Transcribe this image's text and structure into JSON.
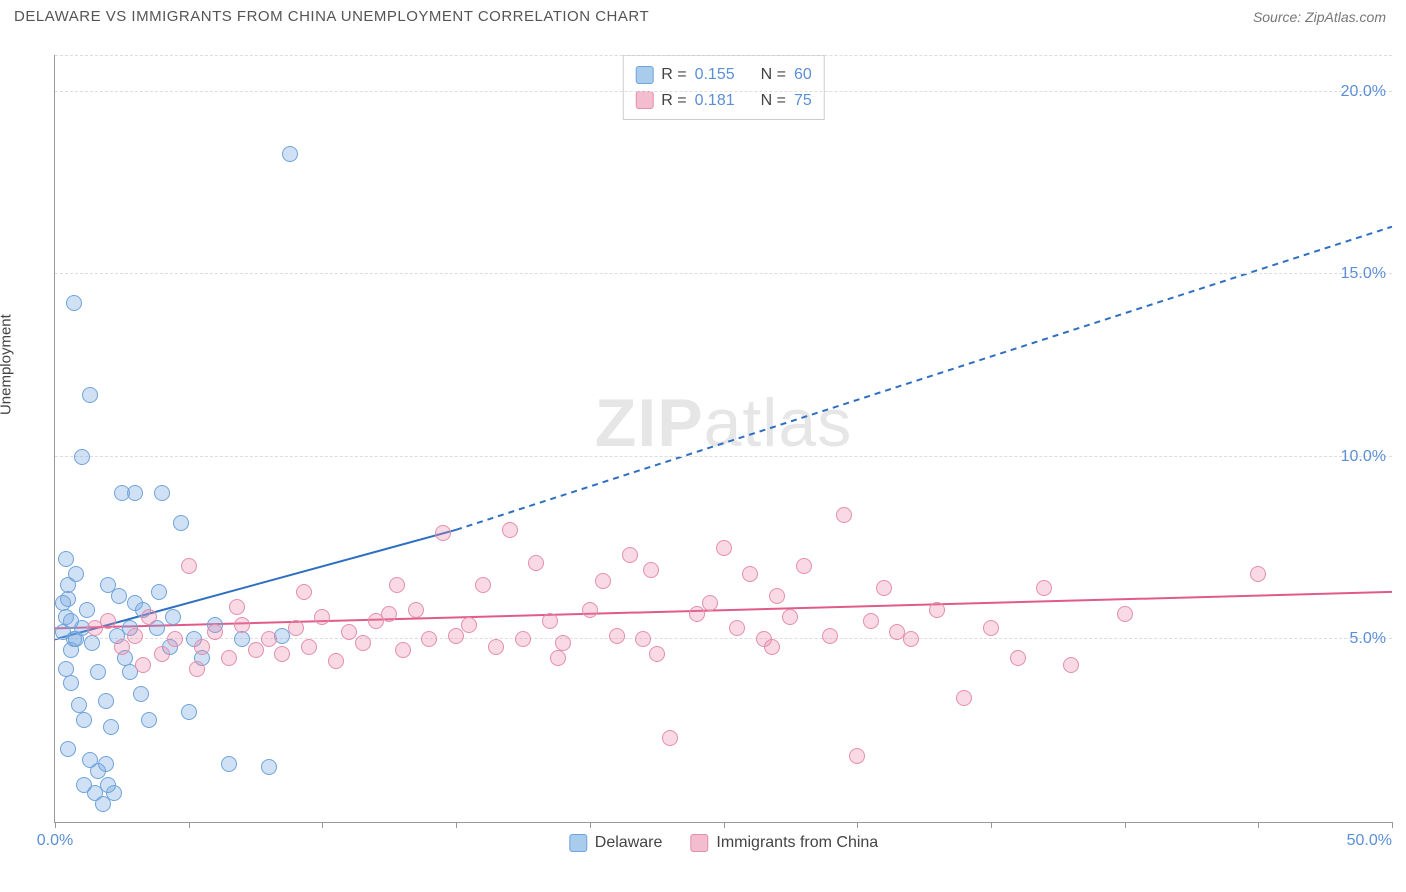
{
  "title": "DELAWARE VS IMMIGRANTS FROM CHINA UNEMPLOYMENT CORRELATION CHART",
  "source": "Source: ZipAtlas.com",
  "ylabel": "Unemployment",
  "watermark_bold": "ZIP",
  "watermark_rest": "atlas",
  "chart": {
    "type": "scatter",
    "xlim": [
      0,
      50
    ],
    "ylim": [
      0,
      21
    ],
    "x_ticks": [
      0,
      5,
      10,
      15,
      20,
      25,
      30,
      35,
      40,
      45,
      50
    ],
    "x_tick_labels": {
      "0": "0.0%",
      "50": "50.0%"
    },
    "y_gridlines": [
      5,
      10,
      15,
      20
    ],
    "y_tick_labels": {
      "5": "5.0%",
      "10": "10.0%",
      "15": "15.0%",
      "20": "20.0%"
    },
    "background_color": "#ffffff",
    "grid_color": "#dddddd",
    "axis_color": "#999999",
    "tick_label_color": "#5b8fd6",
    "point_radius": 8,
    "series": [
      {
        "name": "Delaware",
        "fill_color": "rgba(120,170,225,0.35)",
        "stroke_color": "#6fa3db",
        "swatch_color": "#a9cbec",
        "r_label": "R =",
        "r_value": "0.155",
        "n_label": "N =",
        "n_value": "60",
        "regression": {
          "solid": {
            "x1": 0,
            "y1": 5.0,
            "x2": 15,
            "y2": 8.0
          },
          "dashed": {
            "x1": 15,
            "y1": 8.0,
            "x2": 50,
            "y2": 16.3
          },
          "color": "#2f6fc2",
          "width": 2,
          "dash": "6,5"
        },
        "points": [
          [
            0.3,
            5.2
          ],
          [
            0.4,
            5.6
          ],
          [
            0.5,
            6.1
          ],
          [
            0.6,
            4.7
          ],
          [
            0.7,
            5.0
          ],
          [
            0.5,
            6.5
          ],
          [
            0.8,
            6.8
          ],
          [
            0.4,
            7.2
          ],
          [
            1.0,
            5.3
          ],
          [
            1.2,
            5.8
          ],
          [
            1.4,
            4.9
          ],
          [
            0.6,
            3.8
          ],
          [
            0.9,
            3.2
          ],
          [
            1.1,
            2.8
          ],
          [
            1.3,
            1.7
          ],
          [
            1.6,
            1.4
          ],
          [
            1.9,
            1.6
          ],
          [
            2.1,
            2.6
          ],
          [
            1.5,
            0.8
          ],
          [
            1.8,
            0.5
          ],
          [
            2.2,
            0.8
          ],
          [
            0.7,
            14.2
          ],
          [
            2.0,
            6.5
          ],
          [
            2.3,
            5.1
          ],
          [
            2.6,
            4.5
          ],
          [
            2.8,
            5.3
          ],
          [
            3.0,
            6.0
          ],
          [
            3.2,
            3.5
          ],
          [
            3.5,
            2.8
          ],
          [
            1.3,
            11.7
          ],
          [
            2.5,
            9.0
          ],
          [
            3.0,
            9.0
          ],
          [
            4.0,
            9.0
          ],
          [
            3.8,
            5.3
          ],
          [
            4.3,
            4.8
          ],
          [
            4.7,
            8.2
          ],
          [
            5.2,
            5.0
          ],
          [
            5.5,
            4.5
          ],
          [
            5.0,
            3.0
          ],
          [
            6.0,
            5.4
          ],
          [
            6.5,
            1.6
          ],
          [
            7.0,
            5.0
          ],
          [
            8.0,
            1.5
          ],
          [
            8.5,
            5.1
          ],
          [
            8.8,
            18.3
          ],
          [
            1.0,
            10.0
          ],
          [
            0.4,
            4.2
          ],
          [
            0.3,
            6.0
          ],
          [
            0.6,
            5.5
          ],
          [
            0.8,
            5.0
          ],
          [
            1.6,
            4.1
          ],
          [
            1.9,
            3.3
          ],
          [
            2.4,
            6.2
          ],
          [
            2.8,
            4.1
          ],
          [
            3.3,
            5.8
          ],
          [
            3.9,
            6.3
          ],
          [
            4.4,
            5.6
          ],
          [
            0.5,
            2.0
          ],
          [
            1.1,
            1.0
          ],
          [
            2.0,
            1.0
          ]
        ]
      },
      {
        "name": "Immigrants from China",
        "fill_color": "rgba(235,130,165,0.30)",
        "stroke_color": "#e48fac",
        "swatch_color": "#f3bccf",
        "r_label": "R =",
        "r_value": "0.181",
        "n_label": "N =",
        "n_value": "75",
        "regression": {
          "solid": {
            "x1": 0,
            "y1": 5.3,
            "x2": 50,
            "y2": 6.3
          },
          "color": "#e05a8a",
          "width": 2
        },
        "points": [
          [
            1.5,
            5.3
          ],
          [
            2.0,
            5.5
          ],
          [
            2.5,
            4.8
          ],
          [
            3.0,
            5.1
          ],
          [
            3.5,
            5.6
          ],
          [
            4.0,
            4.6
          ],
          [
            4.5,
            5.0
          ],
          [
            5.0,
            7.0
          ],
          [
            5.5,
            4.8
          ],
          [
            6.0,
            5.2
          ],
          [
            6.5,
            4.5
          ],
          [
            7.0,
            5.4
          ],
          [
            7.5,
            4.7
          ],
          [
            8.0,
            5.0
          ],
          [
            8.5,
            4.6
          ],
          [
            9.0,
            5.3
          ],
          [
            9.5,
            4.8
          ],
          [
            10.0,
            5.6
          ],
          [
            10.5,
            4.4
          ],
          [
            11.0,
            5.2
          ],
          [
            11.5,
            4.9
          ],
          [
            12.0,
            5.5
          ],
          [
            12.5,
            5.7
          ],
          [
            13.0,
            4.7
          ],
          [
            13.5,
            5.8
          ],
          [
            14.0,
            5.0
          ],
          [
            14.5,
            7.9
          ],
          [
            15.5,
            5.4
          ],
          [
            16.0,
            6.5
          ],
          [
            16.5,
            4.8
          ],
          [
            17.0,
            8.0
          ],
          [
            17.5,
            5.0
          ],
          [
            18.0,
            7.1
          ],
          [
            18.5,
            5.5
          ],
          [
            19.0,
            4.9
          ],
          [
            20.0,
            5.8
          ],
          [
            20.5,
            6.6
          ],
          [
            21.0,
            5.1
          ],
          [
            21.5,
            7.3
          ],
          [
            22.0,
            5.0
          ],
          [
            22.5,
            4.6
          ],
          [
            23.0,
            2.3
          ],
          [
            24.0,
            5.7
          ],
          [
            24.5,
            6.0
          ],
          [
            25.0,
            7.5
          ],
          [
            25.5,
            5.3
          ],
          [
            26.0,
            6.8
          ],
          [
            26.5,
            5.0
          ],
          [
            27.0,
            6.2
          ],
          [
            27.5,
            5.6
          ],
          [
            28.0,
            7.0
          ],
          [
            29.0,
            5.1
          ],
          [
            29.5,
            8.4
          ],
          [
            30.0,
            1.8
          ],
          [
            30.5,
            5.5
          ],
          [
            31.0,
            6.4
          ],
          [
            32.0,
            5.0
          ],
          [
            33.0,
            5.8
          ],
          [
            34.0,
            3.4
          ],
          [
            35.0,
            5.3
          ],
          [
            36.0,
            4.5
          ],
          [
            37.0,
            6.4
          ],
          [
            38.0,
            4.3
          ],
          [
            40.0,
            5.7
          ],
          [
            45.0,
            6.8
          ],
          [
            3.3,
            4.3
          ],
          [
            5.3,
            4.2
          ],
          [
            6.8,
            5.9
          ],
          [
            9.3,
            6.3
          ],
          [
            12.8,
            6.5
          ],
          [
            15.0,
            5.1
          ],
          [
            18.8,
            4.5
          ],
          [
            22.3,
            6.9
          ],
          [
            26.8,
            4.8
          ],
          [
            31.5,
            5.2
          ]
        ]
      }
    ]
  }
}
